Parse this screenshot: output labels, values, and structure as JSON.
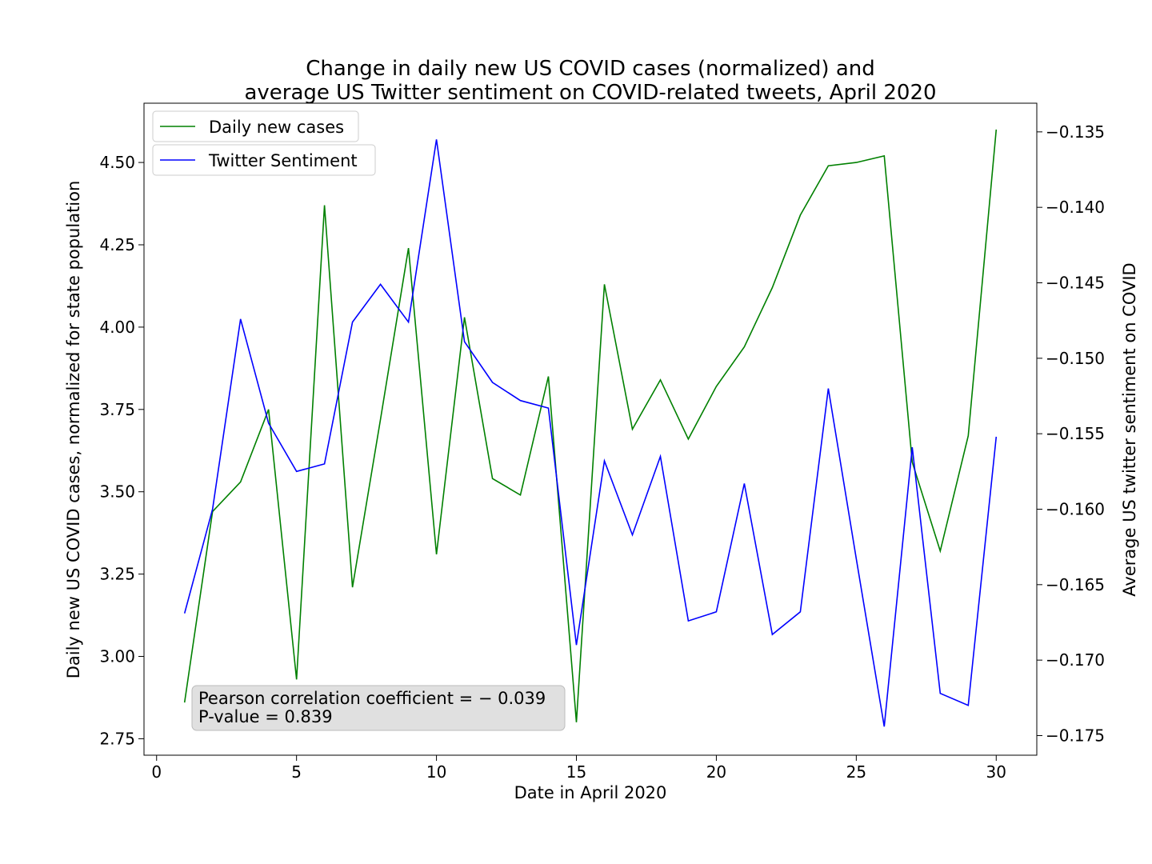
{
  "chart_data": {
    "type": "line",
    "title": [
      "Change in daily new US COVID cases (normalized) and",
      "average US Twitter sentiment on COVID-related tweets, April 2020"
    ],
    "xlabel": "Date in April 2020",
    "ylabel_left": "Daily new US COVID cases, normalized for state population",
    "ylabel_right": "Average US twitter sentiment on COVID",
    "xlim": [
      -0.45,
      31.45
    ],
    "ylim_left": [
      2.7,
      4.68
    ],
    "ylim_right": [
      -0.1763,
      -0.1331
    ],
    "xticks": [
      0,
      5,
      10,
      15,
      20,
      25,
      30
    ],
    "xtick_labels": [
      "0",
      "5",
      "10",
      "15",
      "20",
      "25",
      "30"
    ],
    "yticks_left": [
      2.75,
      3.0,
      3.25,
      3.5,
      3.75,
      4.0,
      4.25,
      4.5
    ],
    "ytick_labels_left": [
      "2.75",
      "3.00",
      "3.25",
      "3.50",
      "3.75",
      "4.00",
      "4.25",
      "4.50"
    ],
    "yticks_right": [
      -0.175,
      -0.17,
      -0.165,
      -0.16,
      -0.155,
      -0.15,
      -0.145,
      -0.14,
      -0.135
    ],
    "ytick_labels_right": [
      "−0.175",
      "−0.170",
      "−0.165",
      "−0.160",
      "−0.155",
      "−0.150",
      "−0.145",
      "−0.140",
      "−0.135"
    ],
    "grid": false,
    "legend_placement": "top-left",
    "x": [
      1,
      2,
      3,
      4,
      5,
      6,
      7,
      8,
      9,
      10,
      11,
      12,
      13,
      14,
      15,
      16,
      17,
      18,
      19,
      20,
      21,
      22,
      23,
      24,
      25,
      26,
      27,
      28,
      29,
      30
    ],
    "series": [
      {
        "name": "Daily new cases",
        "axis": "left",
        "color": "#008000",
        "values": [
          2.86,
          3.44,
          3.53,
          3.75,
          2.93,
          4.37,
          3.21,
          3.72,
          4.24,
          3.31,
          4.03,
          3.54,
          3.49,
          3.85,
          2.8,
          4.13,
          3.69,
          3.84,
          3.66,
          3.82,
          3.94,
          4.12,
          4.34,
          4.49,
          4.5,
          4.52,
          3.59,
          3.32,
          3.67,
          4.6
        ]
      },
      {
        "name": "Twitter Sentiment",
        "axis": "right",
        "color": "#0000ff",
        "values": [
          -0.1669,
          -0.16,
          -0.1474,
          -0.1543,
          -0.1575,
          -0.157,
          -0.1476,
          -0.1451,
          -0.1476,
          -0.1355,
          -0.1489,
          -0.1516,
          -0.1528,
          -0.1533,
          -0.169,
          -0.1568,
          -0.1617,
          -0.1565,
          -0.1674,
          -0.1668,
          -0.1583,
          -0.1683,
          -0.1668,
          -0.152,
          -0.1633,
          -0.1744,
          -0.1559,
          -0.1722,
          -0.173,
          -0.1552
        ]
      }
    ],
    "annotation": {
      "lines": [
        "Pearson correlation coefficient = − 0.039",
        "P-value = 0.839"
      ],
      "placement": "bottom-left",
      "background": "#e0e0e0"
    }
  }
}
